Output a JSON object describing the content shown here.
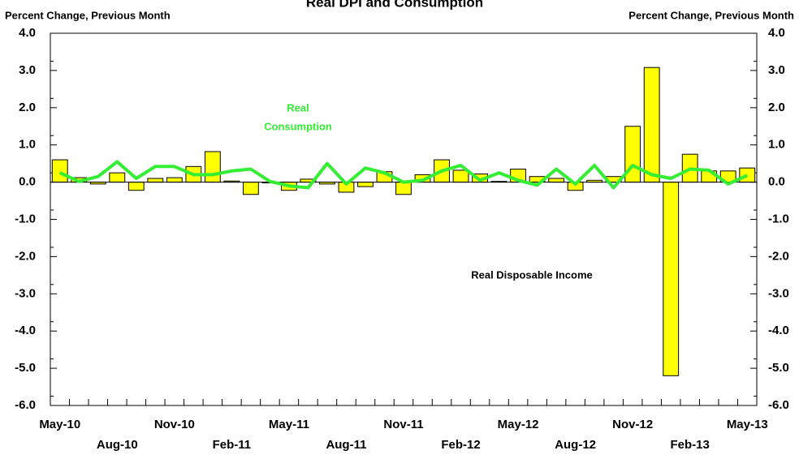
{
  "chart_data": {
    "type": "bar",
    "title": "Real DPI and Consumption",
    "y_axis_label": "Percent Change, Previous Month",
    "y2_axis_label": "Percent Change, Previous Month",
    "annotations": [
      "Real",
      "Consumption",
      "Real Disposable Income"
    ],
    "categories": [
      "May-10",
      null,
      null,
      "Aug-10",
      null,
      null,
      "Nov-10",
      null,
      null,
      "Feb-11",
      null,
      null,
      "May-11",
      null,
      null,
      "Aug-11",
      null,
      null,
      "Nov-11",
      null,
      null,
      "Feb-12",
      null,
      null,
      "May-12",
      null,
      null,
      "Aug-12",
      null,
      null,
      "Nov-12",
      null,
      null,
      "Feb-13",
      null,
      null,
      "May-13"
    ],
    "series": [
      {
        "name": "Real Disposable Income",
        "type": "bar",
        "color": "#ffff00",
        "values": [
          0.6,
          0.12,
          -0.05,
          0.25,
          -0.22,
          0.1,
          0.12,
          0.42,
          0.82,
          0.03,
          -0.33,
          -0.02,
          -0.22,
          0.08,
          -0.05,
          -0.27,
          -0.12,
          0.28,
          -0.33,
          0.2,
          0.6,
          0.32,
          0.22,
          0.02,
          0.35,
          0.15,
          0.1,
          -0.22,
          0.05,
          0.15,
          1.5,
          3.08,
          -5.2,
          0.75,
          0.3,
          0.3,
          0.38
        ]
      },
      {
        "name": "Real Consumption",
        "type": "line",
        "color": "#33ee33",
        "values": [
          0.25,
          0.02,
          0.15,
          0.55,
          0.1,
          0.42,
          0.42,
          0.2,
          0.2,
          0.3,
          0.35,
          0.02,
          -0.1,
          -0.15,
          0.5,
          -0.05,
          0.38,
          0.25,
          0.0,
          0.05,
          0.3,
          0.45,
          0.05,
          0.25,
          0.05,
          -0.08,
          0.35,
          -0.05,
          0.45,
          -0.15,
          0.45,
          0.2,
          0.1,
          0.35,
          0.32,
          -0.05,
          0.18
        ]
      }
    ],
    "ylim": [
      -6,
      4
    ],
    "yticks": [
      {
        "value": -6,
        "label": "-6.0"
      },
      {
        "value": -5,
        "label": "-5.0"
      },
      {
        "value": -4,
        "label": "-4.0"
      },
      {
        "value": -3,
        "label": "-3.0"
      },
      {
        "value": -2,
        "label": "-2.0"
      },
      {
        "value": -1,
        "label": "-1.0"
      },
      {
        "value": 0,
        "label": "0.0"
      },
      {
        "value": 1,
        "label": "1.0"
      },
      {
        "value": 2,
        "label": "2.0"
      },
      {
        "value": 3,
        "label": "3.0"
      },
      {
        "value": 4,
        "label": "4.0"
      }
    ],
    "y2lim": [
      -6,
      4
    ],
    "y2ticks": [
      {
        "value": -6,
        "label": "-6.0"
      },
      {
        "value": -5,
        "label": "-5.0"
      },
      {
        "value": -4,
        "label": "-4.0"
      },
      {
        "value": -3,
        "label": "-3.0"
      },
      {
        "value": -2,
        "label": "-2.0"
      },
      {
        "value": -1,
        "label": "-1.0"
      },
      {
        "value": 0,
        "label": "0.0"
      },
      {
        "value": 1,
        "label": "1.0"
      },
      {
        "value": 2,
        "label": "2.0"
      },
      {
        "value": 3,
        "label": "3.0"
      },
      {
        "value": 4,
        "label": "4.0"
      }
    ],
    "grid": false
  }
}
